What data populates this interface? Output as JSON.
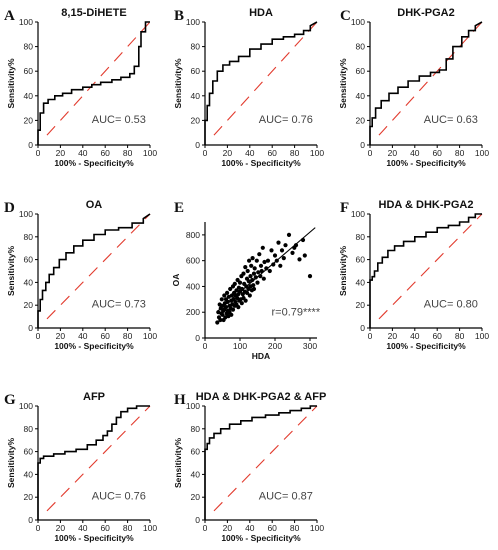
{
  "chart_data": [
    {
      "type": "line",
      "letter": "A",
      "title": "8,15-DiHETE",
      "auc_text": "AUC= 0.53",
      "xlabel": "100% - Specificity%",
      "ylabel": "Sensitivity%",
      "xlim": [
        0,
        100
      ],
      "ylim": [
        0,
        100
      ],
      "xticks": [
        0,
        20,
        40,
        60,
        80,
        100
      ],
      "yticks": [
        0,
        20,
        40,
        60,
        80,
        100
      ],
      "x": [
        0,
        0,
        2,
        2,
        5,
        5,
        9,
        9,
        15,
        15,
        22,
        22,
        30,
        30,
        40,
        40,
        48,
        48,
        56,
        56,
        66,
        66,
        74,
        74,
        82,
        82,
        86,
        86,
        90,
        90,
        92,
        92,
        96,
        96,
        100
      ],
      "y": [
        0,
        12,
        12,
        26,
        26,
        34,
        34,
        37,
        37,
        40,
        40,
        42,
        42,
        45,
        45,
        47,
        47,
        49,
        49,
        51,
        51,
        53,
        53,
        55,
        55,
        58,
        58,
        64,
        64,
        80,
        80,
        92,
        92,
        100,
        100
      ]
    },
    {
      "type": "line",
      "letter": "B",
      "title": "HDA",
      "auc_text": "AUC= 0.76",
      "xlabel": "100% - Specificity%",
      "ylabel": "Sensitivity%",
      "xlim": [
        0,
        100
      ],
      "ylim": [
        0,
        100
      ],
      "xticks": [
        0,
        20,
        40,
        60,
        80,
        100
      ],
      "yticks": [
        0,
        20,
        40,
        60,
        80,
        100
      ],
      "x": [
        0,
        0,
        2,
        2,
        4,
        4,
        7,
        7,
        11,
        11,
        16,
        16,
        22,
        22,
        30,
        30,
        40,
        40,
        50,
        50,
        60,
        60,
        70,
        70,
        80,
        80,
        88,
        88,
        94,
        94,
        100
      ],
      "y": [
        0,
        20,
        20,
        32,
        32,
        42,
        42,
        52,
        52,
        60,
        60,
        65,
        65,
        68,
        68,
        72,
        72,
        78,
        78,
        82,
        82,
        86,
        86,
        88,
        88,
        90,
        90,
        93,
        93,
        97,
        100
      ]
    },
    {
      "type": "line",
      "letter": "C",
      "title": "DHK-PGA2",
      "auc_text": "AUC= 0.63",
      "xlabel": "100% - Specificity%",
      "ylabel": "Sensitivity%",
      "xlim": [
        0,
        100
      ],
      "ylim": [
        0,
        100
      ],
      "xticks": [
        0,
        20,
        40,
        60,
        80,
        100
      ],
      "yticks": [
        0,
        20,
        40,
        60,
        80,
        100
      ],
      "x": [
        0,
        0,
        2,
        2,
        5,
        5,
        10,
        10,
        17,
        17,
        25,
        25,
        34,
        34,
        44,
        44,
        54,
        54,
        62,
        62,
        68,
        68,
        74,
        74,
        82,
        82,
        88,
        88,
        94,
        94,
        100
      ],
      "y": [
        0,
        15,
        15,
        22,
        22,
        30,
        30,
        36,
        36,
        42,
        42,
        47,
        47,
        52,
        52,
        56,
        56,
        59,
        59,
        61,
        61,
        70,
        70,
        80,
        80,
        88,
        88,
        93,
        93,
        97,
        100
      ]
    },
    {
      "type": "line",
      "letter": "D",
      "title": "OA",
      "auc_text": "AUC= 0.73",
      "xlabel": "100% - Specificity%",
      "ylabel": "Sensitivity%",
      "xlim": [
        0,
        100
      ],
      "ylim": [
        0,
        100
      ],
      "xticks": [
        0,
        20,
        40,
        60,
        80,
        100
      ],
      "yticks": [
        0,
        20,
        40,
        60,
        80,
        100
      ],
      "x": [
        0,
        0,
        2,
        2,
        4,
        4,
        7,
        7,
        10,
        10,
        14,
        14,
        19,
        19,
        25,
        25,
        32,
        32,
        40,
        40,
        50,
        50,
        60,
        60,
        72,
        72,
        84,
        84,
        94,
        94,
        100
      ],
      "y": [
        0,
        15,
        15,
        25,
        25,
        33,
        33,
        40,
        40,
        47,
        47,
        53,
        53,
        60,
        60,
        66,
        66,
        72,
        72,
        77,
        77,
        82,
        82,
        86,
        86,
        88,
        88,
        92,
        92,
        96,
        100
      ]
    },
    {
      "type": "scatter",
      "letter": "E",
      "title": "",
      "xlabel": "HDA",
      "ylabel": "OA",
      "annotation": "r=0.79****",
      "xlim": [
        0,
        320
      ],
      "ylim": [
        0,
        900
      ],
      "xticks": [
        0,
        100,
        200,
        300
      ],
      "yticks": [
        0,
        200,
        400,
        600,
        800
      ],
      "x": [
        35,
        38,
        40,
        42,
        44,
        45,
        47,
        48,
        50,
        50,
        52,
        53,
        55,
        55,
        57,
        58,
        60,
        60,
        62,
        63,
        65,
        65,
        67,
        68,
        70,
        70,
        72,
        73,
        75,
        75,
        77,
        78,
        80,
        80,
        82,
        83,
        85,
        85,
        87,
        88,
        90,
        90,
        92,
        93,
        95,
        95,
        97,
        98,
        100,
        100,
        102,
        104,
        105,
        106,
        108,
        110,
        110,
        112,
        114,
        115,
        116,
        118,
        120,
        120,
        122,
        124,
        125,
        126,
        128,
        130,
        130,
        132,
        134,
        135,
        136,
        138,
        140,
        140,
        142,
        145,
        148,
        150,
        152,
        155,
        158,
        160,
        162,
        165,
        168,
        170,
        175,
        180,
        185,
        190,
        195,
        200,
        205,
        210,
        215,
        220,
        225,
        230,
        240,
        250,
        255,
        260,
        270,
        280,
        285,
        300
      ],
      "y": [
        120,
        200,
        160,
        260,
        140,
        230,
        190,
        300,
        180,
        250,
        210,
        140,
        330,
        220,
        270,
        160,
        300,
        240,
        190,
        350,
        210,
        280,
        170,
        320,
        250,
        200,
        380,
        230,
        290,
        180,
        330,
        260,
        400,
        220,
        300,
        350,
        250,
        420,
        280,
        330,
        260,
        370,
        310,
        450,
        240,
        340,
        390,
        290,
        430,
        360,
        300,
        480,
        270,
        380,
        340,
        500,
        310,
        420,
        360,
        550,
        290,
        400,
        460,
        350,
        520,
        380,
        440,
        600,
        330,
        480,
        400,
        560,
        370,
        450,
        620,
        410,
        500,
        380,
        540,
        470,
        600,
        430,
        510,
        650,
        480,
        560,
        520,
        700,
        460,
        590,
        540,
        600,
        520,
        680,
        570,
        640,
        600,
        740,
        560,
        680,
        620,
        720,
        800,
        660,
        700,
        720,
        610,
        760,
        640,
        480
      ]
    },
    {
      "type": "line",
      "letter": "F",
      "title": "HDA & DHK-PGA2",
      "auc_text": "AUC= 0.80",
      "xlabel": "100% - Specificity%",
      "ylabel": "Sensitivity%",
      "xlim": [
        0,
        100
      ],
      "ylim": [
        0,
        100
      ],
      "xticks": [
        0,
        20,
        40,
        60,
        80,
        100
      ],
      "yticks": [
        0,
        20,
        40,
        60,
        80,
        100
      ],
      "x": [
        0,
        0,
        2,
        2,
        4,
        4,
        7,
        7,
        11,
        11,
        16,
        16,
        22,
        22,
        30,
        30,
        40,
        40,
        50,
        50,
        60,
        60,
        70,
        70,
        80,
        80,
        88,
        88,
        94,
        94,
        100
      ],
      "y": [
        0,
        42,
        42,
        45,
        45,
        50,
        50,
        57,
        57,
        62,
        62,
        68,
        68,
        72,
        72,
        76,
        76,
        80,
        80,
        84,
        84,
        88,
        88,
        90,
        90,
        93,
        93,
        97,
        97,
        100,
        100
      ]
    },
    {
      "type": "line",
      "letter": "G",
      "title": "AFP",
      "auc_text": "AUC= 0.76",
      "xlabel": "100% - Specificity%",
      "ylabel": "Sensitivity%",
      "xlim": [
        0,
        100
      ],
      "ylim": [
        0,
        100
      ],
      "xticks": [
        0,
        20,
        40,
        60,
        80,
        100
      ],
      "yticks": [
        0,
        20,
        40,
        60,
        80,
        100
      ],
      "x": [
        0,
        0,
        2,
        2,
        5,
        5,
        14,
        14,
        24,
        24,
        34,
        34,
        44,
        44,
        52,
        52,
        58,
        58,
        62,
        62,
        66,
        66,
        70,
        70,
        74,
        74,
        80,
        80,
        88,
        88,
        100
      ],
      "y": [
        0,
        50,
        50,
        54,
        54,
        56,
        56,
        58,
        58,
        60,
        60,
        62,
        62,
        66,
        66,
        70,
        70,
        74,
        74,
        78,
        78,
        84,
        84,
        90,
        90,
        95,
        95,
        98,
        98,
        100,
        100
      ]
    },
    {
      "type": "line",
      "letter": "H",
      "title": "HDA & DHK-PGA2 & AFP",
      "auc_text": "AUC= 0.87",
      "xlabel": "100% - Specificity%",
      "ylabel": "Sensitivity%",
      "xlim": [
        0,
        100
      ],
      "ylim": [
        0,
        100
      ],
      "xticks": [
        0,
        20,
        40,
        60,
        80,
        100
      ],
      "yticks": [
        0,
        20,
        40,
        60,
        80,
        100
      ],
      "x": [
        0,
        0,
        2,
        2,
        4,
        4,
        8,
        8,
        14,
        14,
        22,
        22,
        32,
        32,
        42,
        42,
        54,
        54,
        66,
        66,
        76,
        76,
        86,
        86,
        94,
        94,
        100
      ],
      "y": [
        0,
        62,
        62,
        67,
        67,
        72,
        72,
        76,
        76,
        80,
        80,
        84,
        84,
        87,
        87,
        90,
        90,
        92,
        92,
        94,
        94,
        96,
        96,
        98,
        98,
        100,
        100
      ]
    }
  ]
}
